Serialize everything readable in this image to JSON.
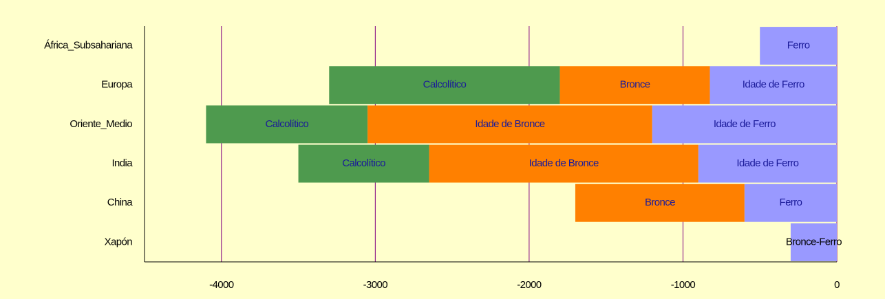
{
  "chart_data": {
    "type": "timeline",
    "rows": [
      {
        "name": "África_Subsahariana",
        "segments": [
          {
            "label": "Ferro",
            "start": -500,
            "end": 0,
            "color": "#9999ff",
            "label_color": "#1a1a99"
          }
        ]
      },
      {
        "name": "Europa",
        "segments": [
          {
            "label": "Calcolítico",
            "start": -3300,
            "end": -1800,
            "color": "#4e9a4e",
            "label_color": "#1a1a99"
          },
          {
            "label": "Bronce",
            "start": -1800,
            "end": -825,
            "color": "#ff8000",
            "label_color": "#1a1a99"
          },
          {
            "label": "Idade de Ferro",
            "start": -825,
            "end": 0,
            "color": "#9999ff",
            "label_color": "#1a1a99"
          }
        ]
      },
      {
        "name": "Oriente_Medio",
        "segments": [
          {
            "label": "Calcolítico",
            "start": -4100,
            "end": -3050,
            "color": "#4e9a4e",
            "label_color": "#1a1a99"
          },
          {
            "label": "Idade de Bronce",
            "start": -3050,
            "end": -1200,
            "color": "#ff8000",
            "label_color": "#1a1a99"
          },
          {
            "label": "Idade de Ferro",
            "start": -1200,
            "end": 0,
            "color": "#9999ff",
            "label_color": "#1a1a99"
          }
        ]
      },
      {
        "name": "India",
        "segments": [
          {
            "label": "Calcolítico",
            "start": -3500,
            "end": -2650,
            "color": "#4e9a4e",
            "label_color": "#1a1a99"
          },
          {
            "label": "Idade de Bronce",
            "start": -2650,
            "end": -900,
            "color": "#ff8000",
            "label_color": "#1a1a99"
          },
          {
            "label": "Idade de Ferro",
            "start": -900,
            "end": 0,
            "color": "#9999ff",
            "label_color": "#1a1a99"
          }
        ]
      },
      {
        "name": "China",
        "segments": [
          {
            "label": "Bronce",
            "start": -1700,
            "end": -600,
            "color": "#ff8000",
            "label_color": "#1a1a99"
          },
          {
            "label": "Ferro",
            "start": -600,
            "end": 0,
            "color": "#9999ff",
            "label_color": "#1a1a99"
          }
        ]
      },
      {
        "name": "Xapón",
        "segments": [
          {
            "label": "Bronce-Ferro",
            "start": -300,
            "end": 0,
            "color": "#9999ff",
            "label_color": "#000000"
          }
        ]
      }
    ],
    "xlim": [
      -4500,
      0
    ],
    "xticks": [
      -4000,
      -3000,
      -2000,
      -1000,
      0
    ],
    "grid": true,
    "grid_color": "#800080"
  }
}
